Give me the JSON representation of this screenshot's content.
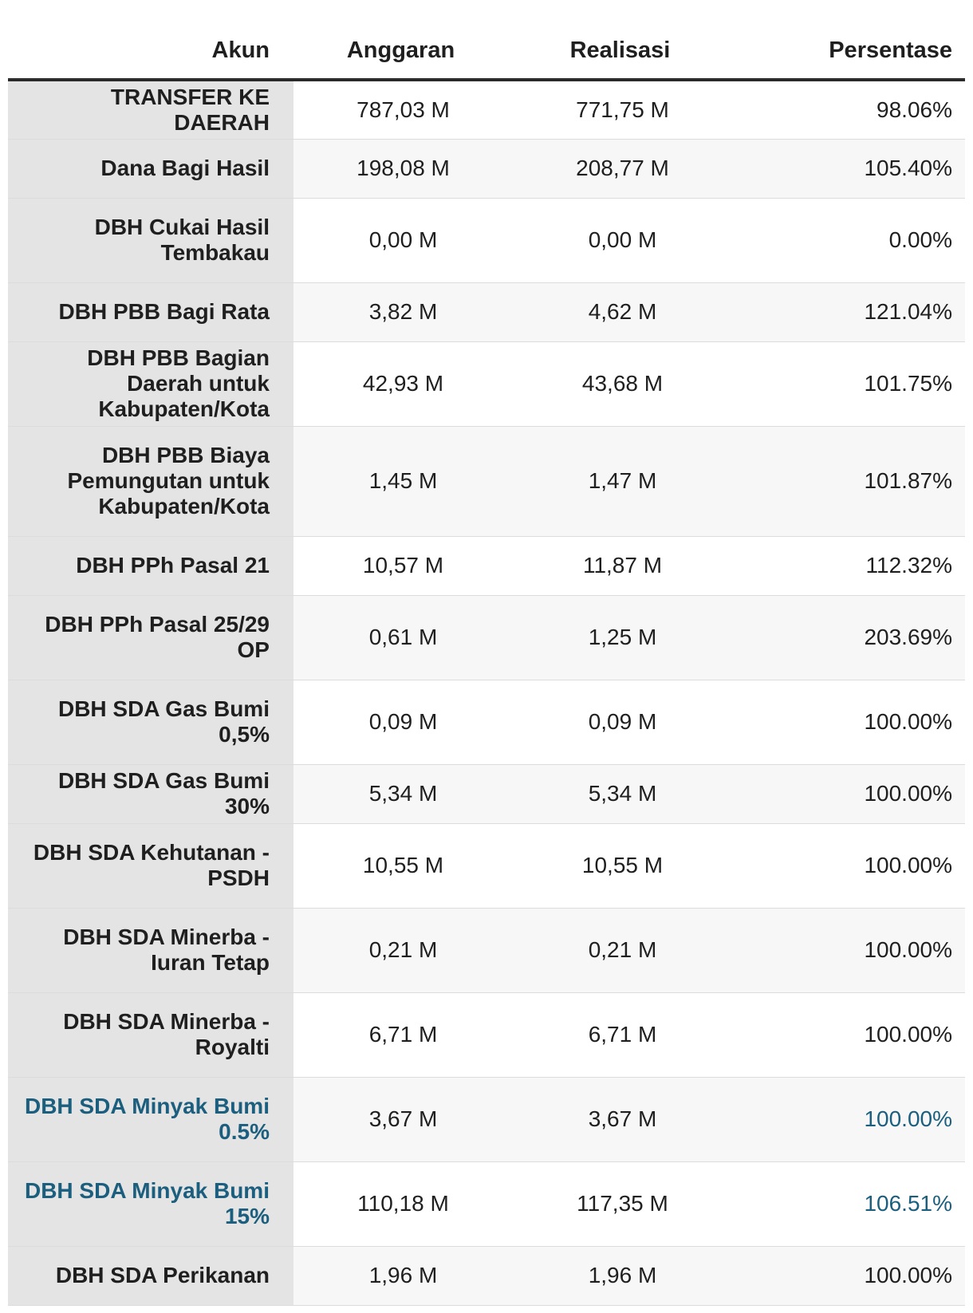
{
  "table": {
    "headers": {
      "akun": "Akun",
      "anggaran": "Anggaran",
      "realisasi": "Realisasi",
      "persentase": "Persentase"
    },
    "rows": [
      {
        "akun": "TRANSFER KE DAERAH",
        "anggaran": "787,03 M",
        "realisasi": "771,75 M",
        "persentase": "98.06%",
        "link": false
      },
      {
        "akun": "Dana Bagi Hasil",
        "anggaran": "198,08 M",
        "realisasi": "208,77 M",
        "persentase": "105.40%",
        "link": false
      },
      {
        "akun": "DBH Cukai Hasil Tembakau",
        "anggaran": "0,00 M",
        "realisasi": "0,00 M",
        "persentase": "0.00%",
        "link": false
      },
      {
        "akun": "DBH PBB Bagi Rata",
        "anggaran": "3,82 M",
        "realisasi": "4,62 M",
        "persentase": "121.04%",
        "link": false
      },
      {
        "akun": "DBH PBB Bagian Daerah untuk Kabupaten/Kota",
        "anggaran": "42,93 M",
        "realisasi": "43,68 M",
        "persentase": "101.75%",
        "link": false
      },
      {
        "akun": "DBH PBB Biaya Pemungutan untuk Kabupaten/Kota",
        "anggaran": "1,45 M",
        "realisasi": "1,47 M",
        "persentase": "101.87%",
        "link": false
      },
      {
        "akun": "DBH PPh Pasal 21",
        "anggaran": "10,57 M",
        "realisasi": "11,87 M",
        "persentase": "112.32%",
        "link": false
      },
      {
        "akun": "DBH PPh Pasal 25/29 OP",
        "anggaran": "0,61 M",
        "realisasi": "1,25 M",
        "persentase": "203.69%",
        "link": false
      },
      {
        "akun": "DBH SDA Gas Bumi 0,5%",
        "anggaran": "0,09 M",
        "realisasi": "0,09 M",
        "persentase": "100.00%",
        "link": false
      },
      {
        "akun": "DBH SDA Gas Bumi 30%",
        "anggaran": "5,34 M",
        "realisasi": "5,34 M",
        "persentase": "100.00%",
        "link": false
      },
      {
        "akun": "DBH SDA Kehutanan - PSDH",
        "anggaran": "10,55 M",
        "realisasi": "10,55 M",
        "persentase": "100.00%",
        "link": false
      },
      {
        "akun": "DBH SDA Minerba - Iuran Tetap",
        "anggaran": "0,21 M",
        "realisasi": "0,21 M",
        "persentase": "100.00%",
        "link": false
      },
      {
        "akun": "DBH SDA Minerba - Royalti",
        "anggaran": "6,71 M",
        "realisasi": "6,71 M",
        "persentase": "100.00%",
        "link": false
      },
      {
        "akun": "DBH SDA Minyak Bumi 0.5%",
        "anggaran": "3,67 M",
        "realisasi": "3,67 M",
        "persentase": "100.00%",
        "link": true
      },
      {
        "akun": "DBH SDA Minyak Bumi 15%",
        "anggaran": "110,18 M",
        "realisasi": "117,35 M",
        "persentase": "106.51%",
        "link": true
      },
      {
        "akun": "DBH SDA Perikanan",
        "anggaran": "1,96 M",
        "realisasi": "1,96 M",
        "persentase": "100.00%",
        "link": false
      }
    ]
  },
  "colors": {
    "link": "#1b5e7e",
    "label_column_bg": "#e4e4e4",
    "header_rule": "#2b2b2b"
  }
}
